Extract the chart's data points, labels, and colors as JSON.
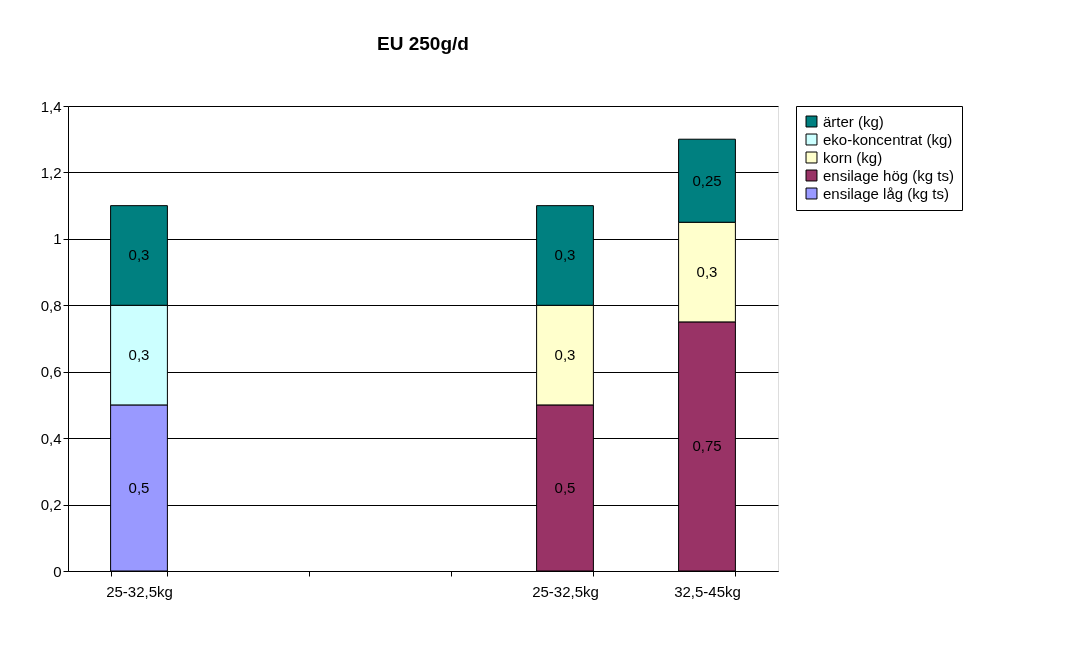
{
  "chart_data": {
    "type": "bar",
    "title": "EU 250g/d",
    "stacked": true,
    "categories": [
      "25-32,5kg",
      null,
      null,
      "25-32,5kg",
      "32,5-45kg"
    ],
    "series": [
      {
        "name": "ensilage låg (kg ts)",
        "color": "#9999ff",
        "values": [
          0.5,
          null,
          null,
          null,
          null
        ],
        "value_labels": [
          "0,5",
          null,
          null,
          null,
          null
        ]
      },
      {
        "name": "ensilage hög (kg ts)",
        "color": "#993366",
        "values": [
          null,
          null,
          null,
          0.5,
          0.75
        ],
        "value_labels": [
          null,
          null,
          null,
          "0,5",
          "0,75"
        ]
      },
      {
        "name": "korn (kg)",
        "color": "#ffffcc",
        "values": [
          null,
          null,
          null,
          0.3,
          0.3
        ],
        "value_labels": [
          null,
          null,
          null,
          "0,3",
          "0,3"
        ]
      },
      {
        "name": "eko-koncentrat (kg)",
        "color": "#ccffff",
        "values": [
          0.3,
          null,
          null,
          null,
          null
        ],
        "value_labels": [
          "0,3",
          null,
          null,
          null,
          null
        ]
      },
      {
        "name": "ärter (kg)",
        "color": "#008080",
        "values": [
          0.3,
          null,
          null,
          0.3,
          0.25
        ],
        "value_labels": [
          "0,3",
          null,
          null,
          "0,3",
          "0,25"
        ]
      }
    ],
    "ylim": [
      0,
      1.4
    ],
    "yticks": [
      0,
      {
        "value": 0.2,
        "label": "0,2"
      },
      {
        "value": 0.4,
        "label": "0,4"
      },
      {
        "value": 0.6,
        "label": "0,6"
      },
      {
        "value": 0.8,
        "label": "0,8"
      },
      1,
      {
        "value": 1.2,
        "label": "1,2"
      },
      {
        "value": 1.4,
        "label": "1,4"
      }
    ],
    "grid": "y",
    "legend": "right"
  }
}
